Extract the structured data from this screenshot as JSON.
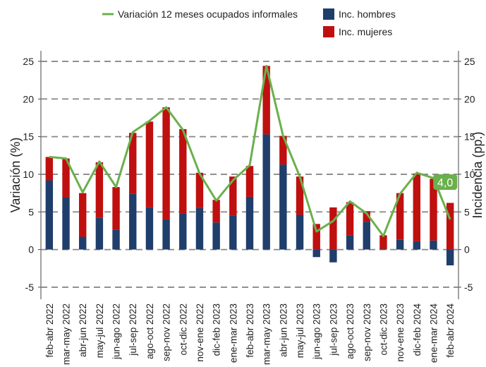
{
  "chart_data": {
    "type": "bar-line",
    "y_label": "Variación (%)",
    "y2_label": "Incidencia (pp.)",
    "categories": [
      "feb-abr 2022",
      "mar-may 2022",
      "abr-jun 2022",
      "may-jul 2022",
      "jun-ago 2022",
      "jul-sep 2022",
      "ago-oct 2022",
      "sep-nov 2022",
      "oct-dic 2022",
      "nov-ene 2022",
      "dic-feb 2023",
      "ene-mar 2023",
      "feb-abr 2023",
      "mar-may 2023",
      "abr-jun 2023",
      "may-jul 2023",
      "jun-ago 2023",
      "jul-sep 2023",
      "ago-oct 2023",
      "sep-nov 2023",
      "oct-dic 2023",
      "nov-ene 2023",
      "dic-feb 2024",
      "ene-mar 2024",
      "feb-abr 2024"
    ],
    "series": [
      {
        "name": "Variación 12 meses ocupados informales",
        "type": "line",
        "color": "#6ab04c",
        "values": [
          12.3,
          12.1,
          7.6,
          11.7,
          8.3,
          15.6,
          17.1,
          18.9,
          15.9,
          10.1,
          6.5,
          9.2,
          11.2,
          24.4,
          15.1,
          9.7,
          2.4,
          3.8,
          6.4,
          4.8,
          1.8,
          7.4,
          10.2,
          9.5,
          4.0
        ],
        "value_labels": [
          null,
          null,
          null,
          null,
          null,
          null,
          null,
          null,
          null,
          null,
          null,
          null,
          null,
          null,
          null,
          null,
          null,
          null,
          null,
          null,
          null,
          null,
          null,
          null,
          "4,0"
        ]
      },
      {
        "name": "Inc. hombres",
        "type": "bar",
        "axis": "y2",
        "color": "#1f3e6b",
        "values": [
          9.2,
          6.9,
          1.7,
          4.2,
          2.6,
          7.4,
          5.6,
          4.0,
          4.8,
          5.5,
          3.6,
          4.5,
          7.0,
          15.3,
          11.3,
          4.6,
          -1.0,
          -1.7,
          1.9,
          3.7,
          0.1,
          1.3,
          1.1,
          1.2,
          -2.1
        ]
      },
      {
        "name": "Inc. mujeres",
        "type": "bar",
        "axis": "y2",
        "color": "#c00f0f",
        "values": [
          3.1,
          5.2,
          5.8,
          7.4,
          5.7,
          8.1,
          11.4,
          14.9,
          11.2,
          4.7,
          3.0,
          5.2,
          4.1,
          9.1,
          3.8,
          5.1,
          3.4,
          5.6,
          4.4,
          1.4,
          1.8,
          6.2,
          9.0,
          8.2,
          6.2
        ]
      }
    ],
    "ylim": [
      -6.6,
      26.4
    ],
    "yticks": [
      -5,
      0,
      5,
      10,
      15,
      20,
      25
    ],
    "y2lim": [
      -6.6,
      26.4
    ],
    "y2ticks": [
      -5,
      0,
      5,
      10,
      15,
      20,
      25
    ],
    "grid": true
  }
}
